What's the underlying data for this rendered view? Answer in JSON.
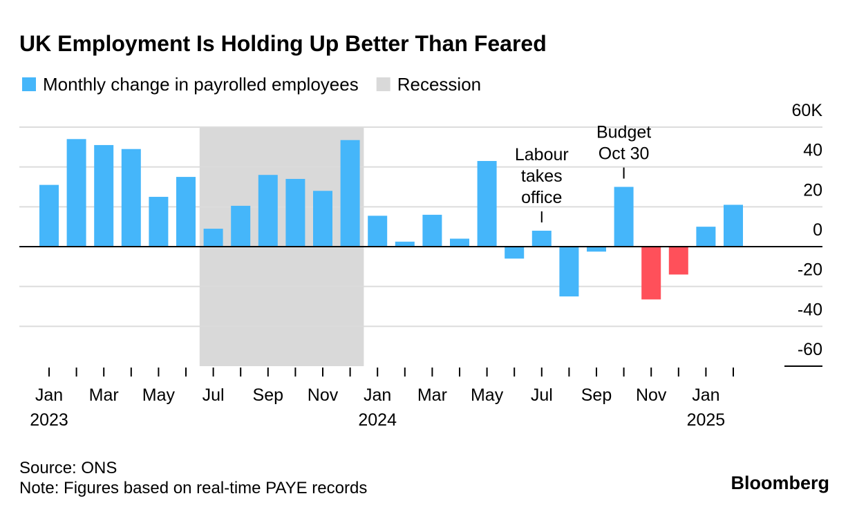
{
  "chart_data": {
    "type": "bar",
    "title": "UK Employment Is Holding Up Better Than Feared",
    "legend": [
      {
        "name": "Monthly change in payrolled employees",
        "color": "#45b6fa"
      },
      {
        "name": "Recession",
        "color": "#d9d9d9"
      }
    ],
    "categories": [
      "Jan",
      null,
      "Mar",
      null,
      "May",
      null,
      "Jul",
      null,
      "Sep",
      null,
      "Nov",
      null,
      "Jan",
      null,
      "Mar",
      null,
      "May",
      null,
      "Jul",
      null,
      "Sep",
      null,
      "Nov",
      null,
      "Jan",
      null
    ],
    "year_labels": [
      {
        "category": 0,
        "label": "2023"
      },
      {
        "category": 12,
        "label": "2024"
      },
      {
        "category": 24,
        "label": "2025"
      }
    ],
    "values": [
      31,
      54,
      51,
      49,
      25,
      35,
      9,
      20.5,
      36,
      34,
      28,
      53.5,
      15.5,
      2.5,
      16,
      4,
      43,
      -6,
      8,
      -25,
      -2.5,
      30,
      -26.5,
      -14,
      10,
      21
    ],
    "colors": [
      "#45b6fa",
      "#45b6fa",
      "#45b6fa",
      "#45b6fa",
      "#45b6fa",
      "#45b6fa",
      "#45b6fa",
      "#45b6fa",
      "#45b6fa",
      "#45b6fa",
      "#45b6fa",
      "#45b6fa",
      "#45b6fa",
      "#45b6fa",
      "#45b6fa",
      "#45b6fa",
      "#45b6fa",
      "#45b6fa",
      "#45b6fa",
      "#45b6fa",
      "#45b6fa",
      "#45b6fa",
      "#ff505a",
      "#ff505a",
      "#45b6fa",
      "#45b6fa"
    ],
    "recession": {
      "start": 6,
      "end": 11
    },
    "annotations": [
      {
        "category": 18,
        "lines": [
          "Labour",
          "takes",
          "office"
        ]
      },
      {
        "category": 21,
        "lines": [
          "Budget",
          "Oct 30"
        ]
      }
    ],
    "ylim": [
      -60,
      60
    ],
    "yticks": [
      {
        "value": 60,
        "label": "60K"
      },
      40,
      20,
      0,
      -20,
      -40,
      -60
    ],
    "grid": true,
    "source": "Source: ONS",
    "note": "Note: Figures based on real-time PAYE records",
    "brand": "Bloomberg"
  }
}
